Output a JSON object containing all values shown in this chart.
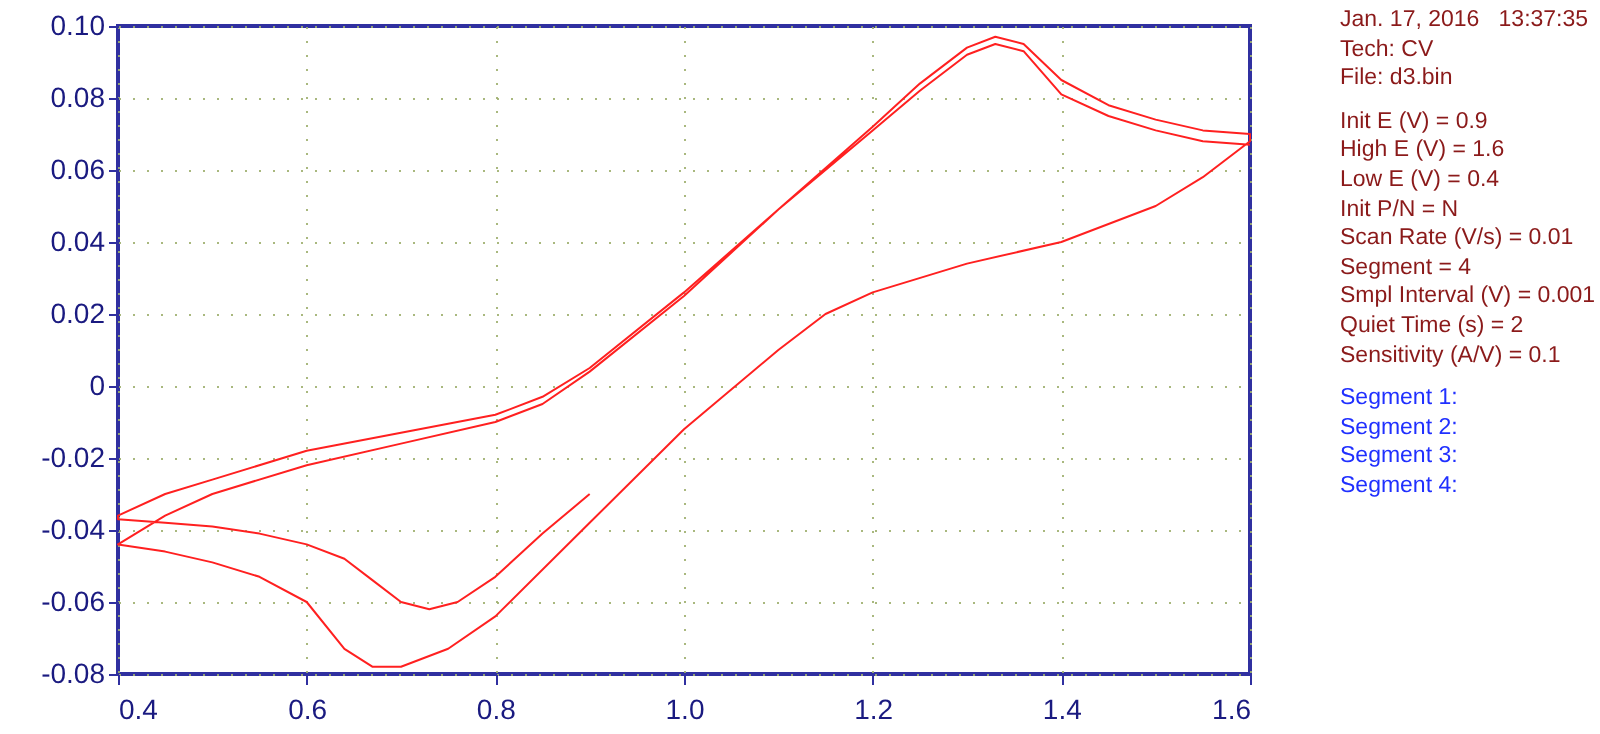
{
  "chart_data": {
    "type": "line",
    "x": [
      0.9,
      0.85,
      0.8,
      0.76,
      0.73,
      0.7,
      0.67,
      0.64,
      0.6,
      0.55,
      0.5,
      0.45,
      0.4,
      0.4,
      0.45,
      0.5,
      0.6,
      0.7,
      0.8,
      0.85,
      0.9,
      1.0,
      1.1,
      1.2,
      1.25,
      1.3,
      1.33,
      1.36,
      1.4,
      1.45,
      1.5,
      1.55,
      1.6,
      1.6,
      1.55,
      1.5,
      1.4,
      1.3,
      1.2,
      1.15,
      1.1,
      1.0,
      0.9,
      0.8,
      0.75,
      0.7,
      0.67,
      0.64,
      0.6,
      0.55,
      0.5,
      0.45,
      0.4,
      0.45,
      0.5,
      0.6,
      0.7,
      0.8,
      0.85,
      0.9,
      1.0,
      1.1,
      1.2,
      1.25,
      1.3,
      1.33,
      1.36,
      1.4,
      1.45,
      1.5,
      1.55,
      1.6
    ],
    "series": [
      {
        "color": "#ff2020",
        "values": [
          -0.03,
          -0.041,
          -0.053,
          -0.06,
          -0.062,
          -0.06,
          -0.054,
          -0.048,
          -0.044,
          -0.041,
          -0.039,
          -0.038,
          -0.037,
          -0.036,
          -0.03,
          -0.026,
          -0.018,
          -0.013,
          -0.008,
          -0.003,
          0.005,
          0.026,
          0.049,
          0.072,
          0.084,
          0.094,
          0.097,
          0.095,
          0.085,
          0.078,
          0.074,
          0.071,
          0.07,
          0.068,
          0.058,
          0.05,
          0.04,
          0.034,
          0.026,
          0.02,
          0.01,
          -0.012,
          -0.038,
          -0.064,
          -0.073,
          -0.078,
          -0.078,
          -0.073,
          -0.06,
          -0.053,
          -0.049,
          -0.046,
          -0.044,
          -0.036,
          -0.03,
          -0.022,
          -0.016,
          -0.01,
          -0.005,
          0.004,
          0.025,
          0.049,
          0.071,
          0.082,
          0.092,
          0.095,
          0.093,
          0.081,
          0.075,
          0.071,
          0.068,
          0.067
        ]
      }
    ],
    "xlim": [
      0.4,
      1.6
    ],
    "xticks": [
      0.4,
      0.6,
      0.8,
      {
        "value": 1.0,
        "label": "1.0"
      },
      1.2,
      1.4,
      1.6
    ],
    "ylim": [
      -0.08,
      0.1
    ],
    "yticks": [
      -0.08,
      -0.06,
      -0.04,
      -0.02,
      0,
      0.02,
      0.04,
      0.06,
      0.08,
      {
        "value": 0.1,
        "label": "0.10"
      }
    ],
    "grid": true,
    "line_style": "solid",
    "annotations": [
      "Jan. 17, 2016   13:37:35",
      "Tech: CV",
      "File: d3.bin",
      "Init E (V) = 0.9",
      "High E (V) = 1.6",
      "Low E (V) = 0.4",
      "Init P/N = N",
      "Scan Rate (V/s) = 0.01",
      "Segment = 4",
      "Smpl Interval (V) = 0.001",
      "Quiet Time (s) = 2",
      "Sensitivity (A/V) = 0.1",
      "Segment 1:",
      "Segment 2:",
      "Segment 3:",
      "Segment 4:"
    ]
  }
}
